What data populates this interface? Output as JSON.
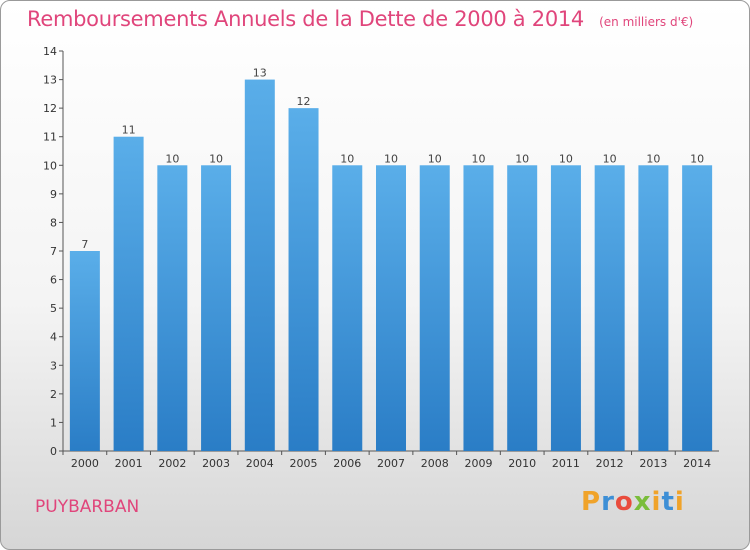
{
  "chart_data": {
    "type": "bar",
    "title": "Remboursements Annuels de la Dette de 2000 à 2014",
    "unit": "(en milliers d'€)",
    "categories": [
      "2000",
      "2001",
      "2002",
      "2003",
      "2004",
      "2005",
      "2006",
      "2007",
      "2008",
      "2009",
      "2010",
      "2011",
      "2012",
      "2013",
      "2014"
    ],
    "values": [
      7,
      11,
      10,
      10,
      13,
      12,
      10,
      10,
      10,
      10,
      10,
      10,
      10,
      10,
      10
    ],
    "ylim": [
      0,
      14
    ],
    "yticks": [
      0,
      1,
      2,
      3,
      4,
      5,
      6,
      7,
      8,
      9,
      10,
      11,
      12,
      13,
      14
    ],
    "grid": false,
    "bar_color": "#4a9fe0"
  },
  "commune": "PUYBARBAN",
  "logo": {
    "letters": [
      "P",
      "r",
      "o",
      "x",
      "i",
      "t",
      "i"
    ]
  }
}
